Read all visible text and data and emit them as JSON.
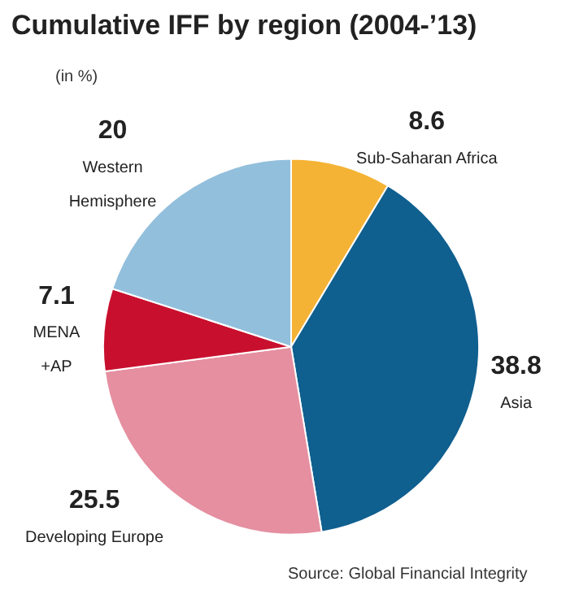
{
  "chart_data": {
    "type": "pie",
    "title": "Cumulative IFF by region (2004-’13)",
    "subtitle": "(in %)",
    "categories": [
      "Sub-Saharan Africa",
      "Asia",
      "Developing Europe",
      "MENA\n+AP",
      "Western\nHemisphere"
    ],
    "values": [
      8.6,
      38.8,
      25.5,
      7.1,
      20
    ],
    "colors": [
      "#f5b335",
      "#0f5f8f",
      "#e58fa0",
      "#c8102e",
      "#92bfdc"
    ],
    "data_labels": true,
    "legend": false,
    "annotations": [
      "Source: Global Financial Integrity"
    ]
  }
}
